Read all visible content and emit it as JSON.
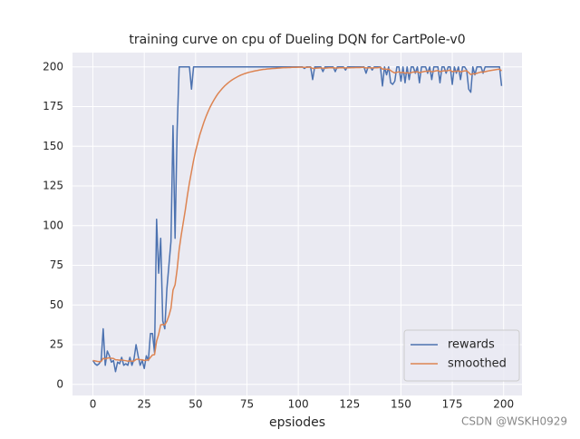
{
  "chart_data": {
    "type": "line",
    "title": "training curve on cpu of Dueling DQN for CartPole-v0",
    "xlabel": "epsiodes",
    "watermark": "CSDN @WSKH0929",
    "x": [
      0,
      1,
      2,
      3,
      4,
      5,
      6,
      7,
      8,
      9,
      10,
      11,
      12,
      13,
      14,
      15,
      16,
      17,
      18,
      19,
      20,
      21,
      22,
      23,
      24,
      25,
      26,
      27,
      28,
      29,
      30,
      31,
      32,
      33,
      34,
      35,
      36,
      37,
      38,
      39,
      40,
      41,
      42,
      43,
      44,
      45,
      46,
      47,
      48,
      49,
      50,
      51,
      52,
      53,
      54,
      55,
      56,
      57,
      58,
      59,
      60,
      61,
      62,
      63,
      64,
      65,
      66,
      67,
      68,
      69,
      70,
      71,
      72,
      73,
      74,
      75,
      76,
      77,
      78,
      79,
      80,
      81,
      82,
      83,
      84,
      85,
      86,
      87,
      88,
      89,
      90,
      91,
      92,
      93,
      94,
      95,
      96,
      97,
      98,
      99,
      100,
      101,
      102,
      103,
      104,
      105,
      106,
      107,
      108,
      109,
      110,
      111,
      112,
      113,
      114,
      115,
      116,
      117,
      118,
      119,
      120,
      121,
      122,
      123,
      124,
      125,
      126,
      127,
      128,
      129,
      130,
      131,
      132,
      133,
      134,
      135,
      136,
      137,
      138,
      139,
      140,
      141,
      142,
      143,
      144,
      145,
      146,
      147,
      148,
      149,
      150,
      151,
      152,
      153,
      154,
      155,
      156,
      157,
      158,
      159,
      160,
      161,
      162,
      163,
      164,
      165,
      166,
      167,
      168,
      169,
      170,
      171,
      172,
      173,
      174,
      175,
      176,
      177,
      178,
      179,
      180,
      181,
      182,
      183,
      184,
      185,
      186,
      187,
      188,
      189,
      190,
      191,
      192,
      193,
      194,
      195,
      196,
      197,
      198,
      199
    ],
    "series": [
      {
        "name": "rewards",
        "color": "#4c72b0",
        "values": [
          15,
          13,
          12,
          13,
          15,
          35,
          12,
          21,
          18,
          14,
          15,
          8,
          14,
          13,
          17,
          12,
          13,
          12,
          17,
          12,
          16,
          25,
          18,
          12,
          15,
          10,
          18,
          15,
          32,
          32,
          20,
          104,
          70,
          92,
          40,
          35,
          60,
          75,
          90,
          163,
          92,
          160,
          200,
          200,
          200,
          200,
          200,
          200,
          186,
          200,
          200,
          200,
          200,
          200,
          200,
          200,
          200,
          200,
          200,
          200,
          200,
          200,
          200,
          200,
          200,
          200,
          200,
          200,
          200,
          200,
          200,
          200,
          200,
          200,
          200,
          200,
          200,
          200,
          200,
          200,
          200,
          200,
          200,
          200,
          200,
          200,
          200,
          200,
          200,
          200,
          200,
          200,
          200,
          200,
          200,
          200,
          200,
          200,
          200,
          200,
          200,
          200,
          200,
          199,
          200,
          200,
          200,
          192,
          200,
          200,
          200,
          200,
          197,
          200,
          200,
          200,
          200,
          200,
          197,
          200,
          200,
          200,
          200,
          198,
          200,
          200,
          200,
          200,
          200,
          200,
          200,
          200,
          200,
          196,
          200,
          200,
          198,
          200,
          200,
          200,
          200,
          188,
          200,
          195,
          200,
          190,
          189,
          191,
          200,
          200,
          191,
          200,
          190,
          200,
          192,
          200,
          200,
          196,
          200,
          190,
          200,
          200,
          200,
          196,
          200,
          192,
          200,
          200,
          200,
          190,
          200,
          200,
          196,
          200,
          200,
          189,
          200,
          196,
          200,
          192,
          200,
          200,
          198,
          186,
          184,
          200,
          195,
          200,
          200,
          200,
          196,
          200,
          200,
          200,
          200,
          200,
          200,
          200,
          200,
          188
        ]
      },
      {
        "name": "smoothed",
        "color": "#dd8452",
        "values": [
          15,
          14.8,
          14.5,
          14.3,
          14.4,
          16.4,
          16,
          16.5,
          16.7,
          16.4,
          16.3,
          15.5,
          15.4,
          15.2,
          15.4,
          15.1,
          14.9,
          14.6,
          14.8,
          14.5,
          14.7,
          15.7,
          15.9,
          15.5,
          15.5,
          15,
          15.3,
          15.3,
          17,
          18.5,
          18.7,
          27.2,
          31.5,
          37.5,
          37.7,
          37.4,
          39.7,
          43.2,
          47.9,
          59.4,
          62.7,
          72.4,
          85,
          94,
          102,
          110,
          119,
          127,
          134,
          141,
          147,
          152,
          157,
          161,
          165,
          168.5,
          171.6,
          174.5,
          177,
          179.3,
          181.4,
          183.3,
          184.9,
          186.4,
          187.8,
          189,
          190.1,
          191.1,
          192,
          192.8,
          193.5,
          194.2,
          194.8,
          195.3,
          195.8,
          196.2,
          196.6,
          196.9,
          197.2,
          197.5,
          197.7,
          198,
          198.2,
          198.4,
          198.5,
          198.7,
          198.8,
          198.9,
          199,
          199.1,
          199.2,
          199.3,
          199.4,
          199.5,
          199.5,
          199.6,
          199.6,
          199.7,
          199.7,
          199.7,
          199.8,
          199.8,
          199.8,
          199.7,
          199.7,
          199.8,
          199.8,
          199,
          199.1,
          199.2,
          199.3,
          199.4,
          199.1,
          199.2,
          199.3,
          199.4,
          199.4,
          199.5,
          199.2,
          199.3,
          199.4,
          199.4,
          199.5,
          199.3,
          199.4,
          199.4,
          199.5,
          199.5,
          199.6,
          199.6,
          199.6,
          199.7,
          199.7,
          199.3,
          199.4,
          199.4,
          199.3,
          199.4,
          199.4,
          199.5,
          199.8,
          198.6,
          198.7,
          198.4,
          198.6,
          197.7,
          196.8,
          196.2,
          196.6,
          196.9,
          196.3,
          196.7,
          196,
          196.4,
          196,
          196.4,
          196.8,
          196.7,
          197,
          196.3,
          196.7,
          197,
          197.3,
          197.2,
          197.5,
          196.9,
          197.2,
          197.5,
          197.7,
          197,
          197.3,
          197.6,
          197.4,
          197.7,
          197.9,
          197,
          197.3,
          197.2,
          197.5,
          196.9,
          197.2,
          197.5,
          197.6,
          196.4,
          195.2,
          195.7,
          195.6,
          196,
          196.4,
          196.8,
          196.7,
          197,
          197.3,
          197.6,
          197.8,
          198,
          198.2,
          198.4,
          198.6,
          197.5
        ]
      }
    ],
    "xlim": [
      -9.95,
      208.95
    ],
    "xticks": [
      0,
      25,
      50,
      75,
      100,
      125,
      150,
      175,
      200
    ],
    "ylim": [
      -7,
      209
    ],
    "yticks": [
      0,
      25,
      50,
      75,
      100,
      125,
      150,
      175,
      200
    ],
    "grid": true,
    "legend": "lower right"
  }
}
